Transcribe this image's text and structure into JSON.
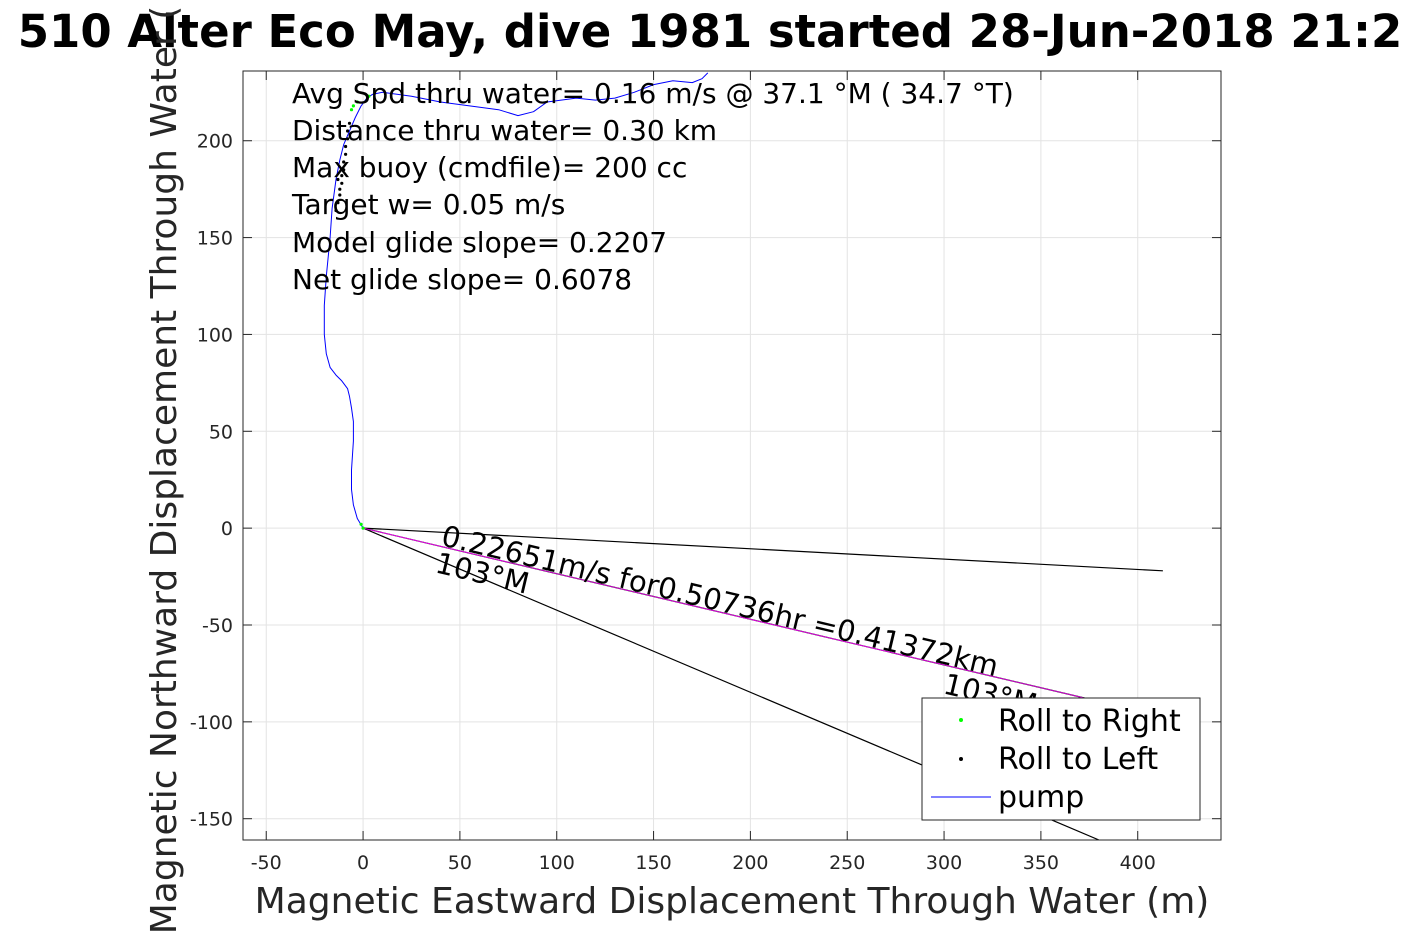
{
  "chart_data": {
    "type": "line",
    "title": "510 Alter Eco May, dive 1981 started 28-Jun-2018 21:2",
    "xlabel": "Magnetic Eastward Displacement Through Water (m)",
    "ylabel": "Magnetic Northward Displacement Through Water (",
    "xlim": [
      -62,
      443
    ],
    "ylim": [
      -161,
      236
    ],
    "xticks": [
      -50,
      0,
      50,
      100,
      150,
      200,
      250,
      300,
      350,
      400
    ],
    "yticks": [
      -150,
      -100,
      -50,
      0,
      50,
      100,
      150,
      200
    ],
    "xtick_labels": [
      "-50",
      "0",
      "50",
      "100",
      "150",
      "200",
      "250",
      "300",
      "350",
      "400"
    ],
    "ytick_labels": [
      "-150",
      "-100",
      "-50",
      "0",
      "50",
      "100",
      "150",
      "200"
    ],
    "grid": true,
    "legend_position": "bottom-right",
    "annotations": [
      "Avg Spd thru water=  0.16 m/s @  37.1 °M ( 34.7 °T)",
      "Distance thru water=  0.30 km",
      "Max buoy (cmdfile)= 200 cc",
      "Target w= 0.05 m/s",
      "Model glide slope= 0.2207",
      "Net glide slope= 0.6078"
    ],
    "current_label": "0.22651m/s for0.50736hr =0.41372km",
    "heading_label_1": "103°M",
    "heading_label_2": "103°M",
    "series": [
      {
        "name": "pump",
        "color": "#0000ff",
        "x": [
          0,
          -3,
          -5,
          -6,
          -6,
          -5,
          -5,
          -6,
          -7,
          -8,
          -11,
          -14,
          -17,
          -19,
          -20,
          -20,
          -19,
          -17,
          -16,
          -14,
          -12,
          -10,
          -7,
          -4,
          -1,
          2,
          5,
          10,
          25,
          40,
          55,
          70,
          80,
          88,
          95,
          110,
          120,
          130,
          140,
          150,
          160,
          170,
          175,
          178
        ],
        "y": [
          0,
          5,
          12,
          20,
          30,
          45,
          55,
          62,
          68,
          72,
          76,
          79,
          83,
          90,
          100,
          115,
          130,
          150,
          165,
          180,
          190,
          198,
          205,
          212,
          218,
          222,
          224,
          225,
          223,
          220,
          218,
          216,
          213,
          215,
          220,
          222,
          221,
          222,
          225,
          229,
          231,
          230,
          232,
          235
        ]
      },
      {
        "name": "Roll to Right",
        "color": "#00ff00",
        "marker": "dot",
        "x": [
          0,
          -1,
          -3,
          -5,
          -6,
          3
        ],
        "y": [
          0,
          2,
          220,
          218,
          216,
          223
        ]
      },
      {
        "name": "Roll to Left",
        "color": "#000000",
        "marker": "dot",
        "x": [
          -12,
          -12,
          -11,
          -11,
          -10,
          -10,
          -9,
          -9,
          -8,
          -8,
          -7,
          -13,
          -13,
          -14
        ],
        "y": [
          172,
          175,
          178,
          182,
          185,
          189,
          193,
          197,
          201,
          205,
          209,
          180,
          168,
          164
        ]
      }
    ],
    "lines": [
      {
        "color": "#000000",
        "x": [
          0,
          413
        ],
        "y": [
          0,
          -22
        ]
      },
      {
        "color": "#000000",
        "x": [
          0,
          380
        ],
        "y": [
          0,
          -161
        ]
      },
      {
        "color": "#000000",
        "x": [
          0,
          378
        ],
        "y": [
          0,
          -89
        ]
      },
      {
        "color": "#ff00ff",
        "x": [
          0,
          378
        ],
        "y": [
          0,
          -89
        ]
      }
    ],
    "legend": [
      {
        "label": "Roll to Right",
        "kind": "dot",
        "color": "#00ff00"
      },
      {
        "label": "Roll to Left",
        "kind": "dot",
        "color": "#000000"
      },
      {
        "label": "pump",
        "kind": "line",
        "color": "#0000ff"
      }
    ]
  }
}
